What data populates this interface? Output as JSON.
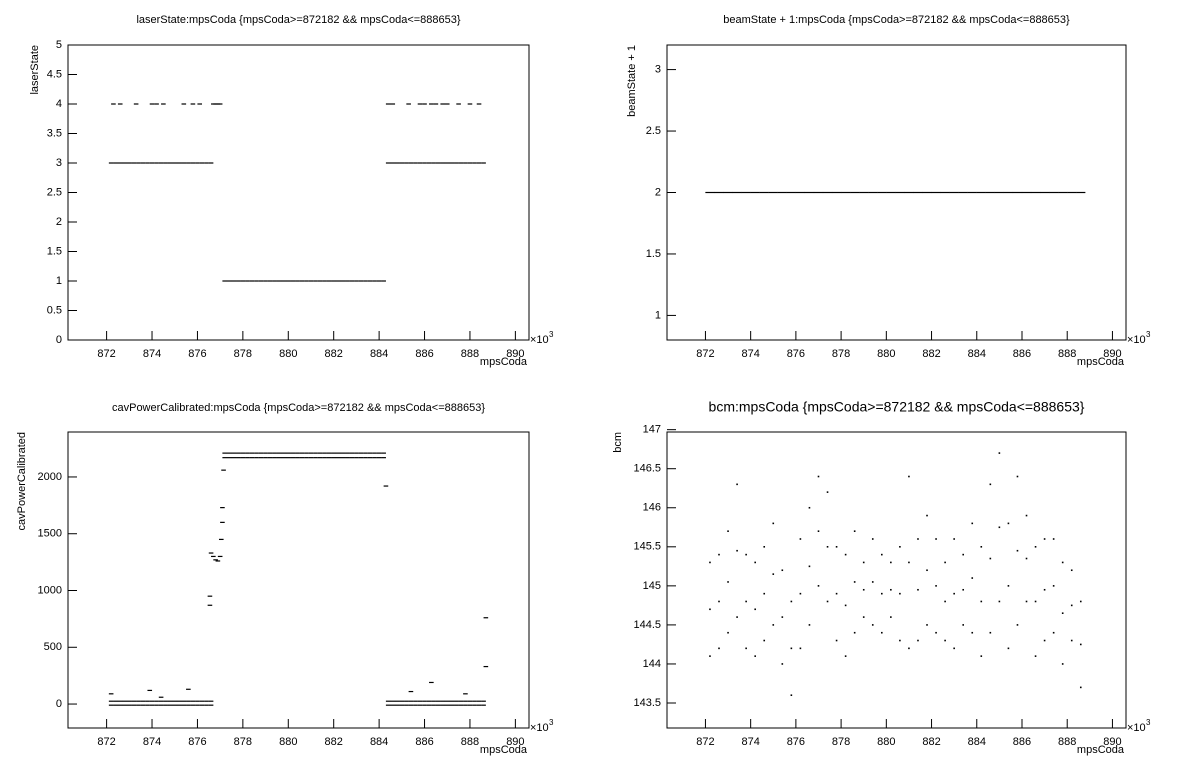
{
  "chart_data": [
    {
      "type": "scatter",
      "title": "laserState:mpsCoda {mpsCoda>=872182 && mpsCoda<=888653}",
      "x_label": "mpsCoda",
      "y_label": "laserState",
      "x_multiplier": "×10",
      "x_multiplier_exponent": "3",
      "color": "#000000",
      "xlim": [
        870.3,
        890.6
      ],
      "xticks": [
        872,
        874,
        876,
        878,
        880,
        882,
        884,
        886,
        888,
        890
      ],
      "ylim": [
        0,
        5
      ],
      "yticks": [
        0,
        0.5,
        1,
        1.5,
        2,
        2.5,
        3,
        3.5,
        4,
        4.5,
        5
      ],
      "x": [
        872.2,
        872.4,
        872.6,
        872.8,
        873,
        873.2,
        873.4,
        873.6,
        873.8,
        874,
        874.2,
        874.4,
        874.6,
        874.8,
        875,
        875.2,
        875.4,
        875.6,
        875.8,
        876,
        876.2,
        876.4,
        876.6,
        872.3,
        872.6,
        873.3,
        874,
        874.2,
        874.5,
        875.4,
        875.8,
        876.1,
        876.7,
        876.8,
        876.9,
        877,
        877.2,
        877.4,
        877.6,
        877.8,
        878,
        878.2,
        878.4,
        878.6,
        878.8,
        879,
        879.2,
        879.4,
        879.6,
        879.8,
        880,
        880.2,
        880.4,
        880.6,
        880.8,
        881,
        881.2,
        881.4,
        881.6,
        881.8,
        882,
        882.2,
        882.4,
        882.6,
        882.8,
        883,
        883.2,
        883.4,
        883.6,
        883.8,
        884,
        884.2,
        884.4,
        884.6,
        884.8,
        885,
        885.2,
        885.4,
        885.6,
        885.8,
        886,
        886.2,
        886.4,
        886.6,
        886.8,
        887,
        887.2,
        887.4,
        887.6,
        887.8,
        888,
        888.2,
        888.4,
        888.6,
        884.4,
        884.6,
        885.3,
        885.8,
        886,
        886.3,
        886.5,
        886.8,
        887,
        887.5,
        888,
        888.4
      ],
      "y": [
        3,
        3,
        3,
        3,
        3,
        3,
        3,
        3,
        3,
        3,
        3,
        3,
        3,
        3,
        3,
        3,
        3,
        3,
        3,
        3,
        3,
        3,
        3,
        4,
        4,
        4,
        4,
        4,
        4,
        4,
        4,
        4,
        4,
        4,
        4,
        4,
        1,
        1,
        1,
        1,
        1,
        1,
        1,
        1,
        1,
        1,
        1,
        1,
        1,
        1,
        1,
        1,
        1,
        1,
        1,
        1,
        1,
        1,
        1,
        1,
        1,
        1,
        1,
        1,
        1,
        1,
        1,
        1,
        1,
        1,
        1,
        1,
        3,
        3,
        3,
        3,
        3,
        3,
        3,
        3,
        3,
        3,
        3,
        3,
        3,
        3,
        3,
        3,
        3,
        3,
        3,
        3,
        3,
        3,
        4,
        4,
        4,
        4,
        4,
        4,
        4,
        4,
        4,
        4,
        4,
        4
      ]
    },
    {
      "type": "scatter",
      "title": "beamState + 1:mpsCoda {mpsCoda>=872182 && mpsCoda<=888653}",
      "x_label": "mpsCoda",
      "y_label": "beamState + 1",
      "x_multiplier": "×10",
      "x_multiplier_exponent": "3",
      "color": "#000000",
      "xlim": [
        870.3,
        890.6
      ],
      "xticks": [
        872,
        874,
        876,
        878,
        880,
        882,
        884,
        886,
        888,
        890
      ],
      "ylim": [
        0.8,
        3.2
      ],
      "yticks": [
        1,
        1.5,
        2,
        2.5,
        3
      ],
      "x": [
        872.2,
        872.6,
        873,
        873.4,
        873.8,
        874.2,
        874.6,
        875,
        875.4,
        875.8,
        876.2,
        876.6,
        877,
        877.4,
        877.8,
        878.2,
        878.6,
        879,
        879.4,
        879.8,
        880.2,
        880.6,
        881,
        881.4,
        881.8,
        882.2,
        882.6,
        883,
        883.4,
        883.8,
        884.2,
        884.6,
        885,
        885.4,
        885.8,
        886.2,
        886.6,
        887,
        887.4,
        887.8,
        888.2,
        888.6
      ],
      "y": [
        2,
        2,
        2,
        2,
        2,
        2,
        2,
        2,
        2,
        2,
        2,
        2,
        2,
        2,
        2,
        2,
        2,
        2,
        2,
        2,
        2,
        2,
        2,
        2,
        2,
        2,
        2,
        2,
        2,
        2,
        2,
        2,
        2,
        2,
        2,
        2,
        2,
        2,
        2,
        2,
        2,
        2
      ]
    },
    {
      "type": "scatter",
      "title": "cavPowerCalibrated:mpsCoda {mpsCoda>=872182 && mpsCoda<=888653}",
      "x_label": "mpsCoda",
      "y_label": "cavPowerCalibrated",
      "x_multiplier": "×10",
      "x_multiplier_exponent": "3",
      "color": "#000000",
      "xlim": [
        870.3,
        890.6
      ],
      "xticks": [
        872,
        874,
        876,
        878,
        880,
        882,
        884,
        886,
        888,
        890
      ],
      "ylim": [
        -211,
        2396
      ],
      "yticks": [
        0,
        500,
        1000,
        1500,
        2000
      ],
      "x": [
        872.2,
        872.4,
        872.6,
        872.8,
        873,
        873.2,
        873.4,
        873.6,
        873.8,
        874,
        874.2,
        874.4,
        874.6,
        874.8,
        875,
        875.2,
        875.4,
        875.6,
        875.8,
        876,
        876.2,
        876.4,
        876.6,
        872.2,
        872.4,
        872.6,
        872.8,
        873,
        873.2,
        873.4,
        873.6,
        873.8,
        874,
        874.2,
        874.4,
        874.6,
        874.8,
        875,
        875.2,
        875.4,
        875.6,
        875.8,
        876,
        876.2,
        876.4,
        876.6,
        872.2,
        873.9,
        874.4,
        875.6,
        876.55,
        876.55,
        876.6,
        876.7,
        876.8,
        876.9,
        877,
        877.05,
        877.1,
        877.1,
        877.15,
        877.2,
        877.4,
        877.6,
        877.8,
        878,
        878.2,
        878.4,
        878.6,
        878.8,
        879,
        879.2,
        879.4,
        879.6,
        879.8,
        880,
        880.2,
        880.4,
        880.6,
        880.8,
        881,
        881.2,
        881.4,
        881.6,
        881.8,
        882,
        882.2,
        882.4,
        882.6,
        882.8,
        883,
        883.2,
        883.4,
        883.6,
        883.8,
        884,
        884.2,
        877.2,
        877.4,
        877.6,
        877.8,
        878,
        878.2,
        878.4,
        878.6,
        878.8,
        879,
        879.2,
        879.4,
        879.6,
        879.8,
        880,
        880.2,
        880.4,
        880.6,
        880.8,
        881,
        881.2,
        881.4,
        881.6,
        881.8,
        882,
        882.2,
        882.4,
        882.6,
        882.8,
        883,
        883.2,
        883.4,
        883.6,
        883.8,
        884,
        884.2,
        884.4,
        884.6,
        884.8,
        885,
        885.2,
        885.4,
        885.6,
        885.8,
        886,
        886.2,
        886.4,
        886.6,
        886.8,
        887,
        887.2,
        887.4,
        887.6,
        887.8,
        888,
        888.2,
        888.4,
        888.6,
        884.4,
        884.6,
        884.8,
        885,
        885.2,
        885.4,
        885.6,
        885.8,
        886,
        886.2,
        886.4,
        886.6,
        886.8,
        887,
        887.2,
        887.4,
        887.6,
        887.8,
        888,
        888.2,
        888.4,
        888.6,
        884.3,
        885.4,
        886.3,
        887.8,
        888.7,
        888.7
      ],
      "y": [
        -10,
        -10,
        -10,
        -10,
        -10,
        -10,
        -10,
        -10,
        -10,
        -10,
        -10,
        -10,
        -10,
        -10,
        -10,
        -10,
        -10,
        -10,
        -10,
        -10,
        -10,
        -10,
        -10,
        25,
        25,
        25,
        25,
        25,
        25,
        25,
        25,
        25,
        25,
        25,
        25,
        25,
        25,
        25,
        25,
        25,
        25,
        25,
        25,
        25,
        25,
        25,
        90,
        120,
        60,
        130,
        950,
        870,
        1330,
        1300,
        1270,
        1260,
        1300,
        1450,
        1600,
        1730,
        2060,
        2170,
        2170,
        2170,
        2170,
        2170,
        2170,
        2170,
        2170,
        2170,
        2170,
        2170,
        2170,
        2170,
        2170,
        2170,
        2170,
        2170,
        2170,
        2170,
        2170,
        2170,
        2170,
        2170,
        2170,
        2170,
        2170,
        2170,
        2170,
        2170,
        2170,
        2170,
        2170,
        2170,
        2170,
        2170,
        2170,
        2210,
        2210,
        2210,
        2210,
        2210,
        2210,
        2210,
        2210,
        2210,
        2210,
        2210,
        2210,
        2210,
        2210,
        2210,
        2210,
        2210,
        2210,
        2210,
        2210,
        2210,
        2210,
        2210,
        2210,
        2210,
        2210,
        2210,
        2210,
        2210,
        2210,
        2210,
        2210,
        2210,
        2210,
        2210,
        2210,
        -10,
        -10,
        -10,
        -10,
        -10,
        -10,
        -10,
        -10,
        -10,
        -10,
        -10,
        -10,
        -10,
        -10,
        -10,
        -10,
        -10,
        -10,
        -10,
        -10,
        -10,
        -10,
        25,
        25,
        25,
        25,
        25,
        25,
        25,
        25,
        25,
        25,
        25,
        25,
        25,
        25,
        25,
        25,
        25,
        25,
        25,
        25,
        25,
        25,
        1920,
        110,
        190,
        90,
        760,
        330
      ]
    },
    {
      "type": "scatter",
      "title": "bcm:mpsCoda {mpsCoda>=872182 && mpsCoda<=888653}",
      "x_label": "mpsCoda",
      "y_label": "bcm",
      "x_multiplier": "×10",
      "x_multiplier_exponent": "3",
      "color": "#000000",
      "xlim": [
        870.3,
        890.6
      ],
      "xticks": [
        872,
        874,
        876,
        878,
        880,
        882,
        884,
        886,
        888,
        890
      ],
      "ylim": [
        143.18,
        146.97
      ],
      "yticks": [
        143.5,
        144,
        144.5,
        145,
        145.5,
        146,
        146.5,
        147
      ],
      "x": [
        872.2,
        872.6,
        873,
        873.4,
        873.8,
        874.2,
        874.6,
        875,
        875.4,
        875.8,
        876.2,
        876.6,
        877,
        877.4,
        877.8,
        878.2,
        878.6,
        879,
        879.4,
        879.8,
        880.2,
        880.6,
        881,
        881.4,
        881.8,
        882.2,
        882.6,
        883,
        883.4,
        883.8,
        884.2,
        884.6,
        885,
        885.4,
        885.8,
        886.2,
        886.6,
        887,
        887.4,
        887.8,
        888.2,
        888.6,
        872.2,
        872.6,
        873,
        873.4,
        873.8,
        874.2,
        874.6,
        875,
        875.4,
        875.8,
        876.2,
        876.6,
        877,
        877.4,
        877.8,
        878.2,
        878.6,
        879,
        879.4,
        879.8,
        880.2,
        880.6,
        881,
        881.4,
        881.8,
        882.2,
        882.6,
        883,
        883.4,
        883.8,
        884.2,
        884.6,
        885,
        885.4,
        885.8,
        886.2,
        886.6,
        887,
        887.4,
        887.8,
        888.2,
        888.6,
        872.2,
        872.6,
        873,
        873.4,
        873.8,
        874.2,
        874.6,
        875,
        875.4,
        875.8,
        876.2,
        876.6,
        877,
        877.4,
        877.8,
        878.2,
        878.6,
        879,
        879.4,
        879.8,
        880.2,
        880.6,
        881,
        881.4,
        881.8,
        882.2,
        882.6,
        883,
        883.4,
        883.8,
        884.2,
        884.6,
        885,
        885.4,
        885.8,
        886.2,
        886.6,
        887,
        887.4,
        887.8,
        888.2,
        888.6
      ],
      "y": [
        144.1,
        144.2,
        144.4,
        144.6,
        144.2,
        144.1,
        144.3,
        144.5,
        144,
        143.6,
        144.2,
        144.5,
        145,
        144.8,
        144.3,
        144.1,
        144.4,
        144.6,
        144.5,
        144.4,
        144.6,
        144.3,
        144.2,
        144.3,
        144.5,
        144.4,
        144.3,
        144.2,
        144.5,
        144.4,
        144.1,
        144.4,
        144.8,
        144.2,
        144.5,
        144.8,
        144.1,
        144.3,
        144.4,
        144,
        144.3,
        143.7,
        144.7,
        144.8,
        145.05,
        145.45,
        144.8,
        144.7,
        144.9,
        145.15,
        144.6,
        144.2,
        144.9,
        145.25,
        145.7,
        145.5,
        144.9,
        144.75,
        145.05,
        144.95,
        145.05,
        144.9,
        144.95,
        144.9,
        145.3,
        144.95,
        145.2,
        145,
        144.8,
        144.9,
        144.95,
        145.1,
        144.8,
        145.35,
        145.75,
        145,
        145.45,
        145.35,
        144.8,
        144.95,
        145,
        144.65,
        144.75,
        144.25,
        145.3,
        145.4,
        145.7,
        146.3,
        145.4,
        145.3,
        145.5,
        145.8,
        145.2,
        144.8,
        145.6,
        146,
        146.4,
        146.2,
        145.5,
        145.4,
        145.7,
        145.3,
        145.6,
        145.4,
        145.3,
        145.5,
        146.4,
        145.6,
        145.9,
        145.6,
        145.3,
        145.6,
        145.4,
        145.8,
        145.5,
        146.3,
        146.7,
        145.8,
        146.4,
        145.9,
        145.5,
        145.6,
        145.6,
        145.3,
        145.2,
        144.8
      ]
    }
  ]
}
